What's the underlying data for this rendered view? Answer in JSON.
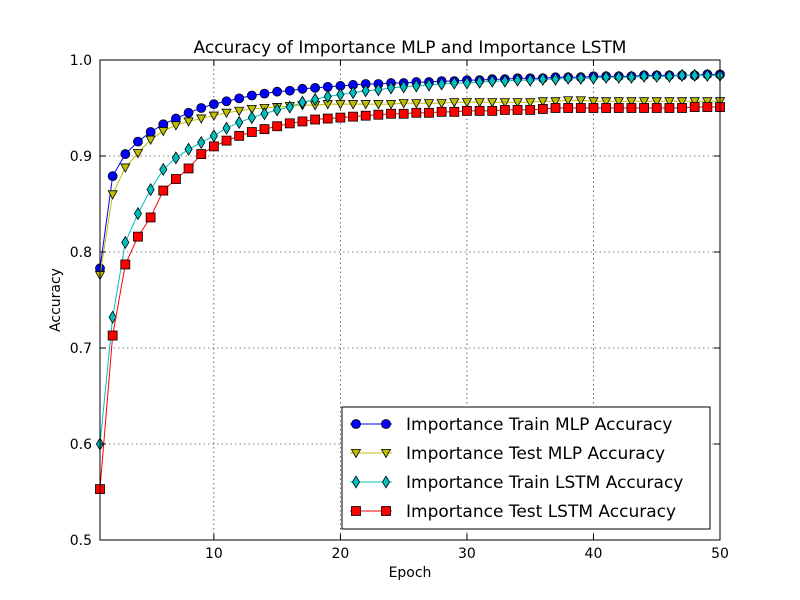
{
  "chart_data": {
    "type": "line",
    "title": "Accuracy of Importance MLP and Importance LSTM",
    "xlabel": "Epoch",
    "ylabel": "Accuracy",
    "xlim": [
      1,
      50
    ],
    "ylim": [
      0.5,
      1.0
    ],
    "xticks": [
      10,
      20,
      30,
      40,
      50
    ],
    "yticks": [
      0.5,
      0.6,
      0.7,
      0.8,
      0.9,
      1.0
    ],
    "ytick_labels": [
      "0.5",
      "0.6",
      "0.7",
      "0.8",
      "0.9",
      "1.0"
    ],
    "grid": true,
    "legend_position": "lower-right",
    "x": [
      1,
      2,
      3,
      4,
      5,
      6,
      7,
      8,
      9,
      10,
      11,
      12,
      13,
      14,
      15,
      16,
      17,
      18,
      19,
      20,
      21,
      22,
      23,
      24,
      25,
      26,
      27,
      28,
      29,
      30,
      31,
      32,
      33,
      34,
      35,
      36,
      37,
      38,
      39,
      40,
      41,
      42,
      43,
      44,
      45,
      46,
      47,
      48,
      49,
      50
    ],
    "series": [
      {
        "name": "Importance Train MLP Accuracy",
        "color": "#0000ff",
        "marker": "circle",
        "values": [
          0.783,
          0.879,
          0.902,
          0.915,
          0.925,
          0.933,
          0.939,
          0.945,
          0.95,
          0.954,
          0.957,
          0.96,
          0.963,
          0.965,
          0.967,
          0.968,
          0.97,
          0.971,
          0.972,
          0.973,
          0.974,
          0.975,
          0.975,
          0.976,
          0.976,
          0.977,
          0.977,
          0.978,
          0.978,
          0.979,
          0.979,
          0.98,
          0.98,
          0.981,
          0.981,
          0.981,
          0.982,
          0.982,
          0.982,
          0.983,
          0.983,
          0.983,
          0.983,
          0.984,
          0.984,
          0.984,
          0.984,
          0.984,
          0.985,
          0.985
        ]
      },
      {
        "name": "Importance Test MLP Accuracy",
        "color": "#bfbf00",
        "marker": "triangle-down",
        "values": [
          0.776,
          0.86,
          0.888,
          0.903,
          0.917,
          0.926,
          0.932,
          0.936,
          0.939,
          0.942,
          0.945,
          0.947,
          0.949,
          0.95,
          0.951,
          0.952,
          0.953,
          0.953,
          0.954,
          0.954,
          0.954,
          0.954,
          0.954,
          0.954,
          0.955,
          0.955,
          0.955,
          0.955,
          0.956,
          0.956,
          0.956,
          0.956,
          0.956,
          0.956,
          0.956,
          0.957,
          0.957,
          0.958,
          0.958,
          0.957,
          0.957,
          0.957,
          0.957,
          0.957,
          0.957,
          0.957,
          0.957,
          0.957,
          0.957,
          0.957
        ]
      },
      {
        "name": "Importance Train LSTM Accuracy",
        "color": "#00bfbf",
        "marker": "diamond",
        "values": [
          0.6,
          0.732,
          0.81,
          0.84,
          0.865,
          0.886,
          0.898,
          0.907,
          0.914,
          0.921,
          0.929,
          0.935,
          0.94,
          0.944,
          0.948,
          0.951,
          0.956,
          0.959,
          0.962,
          0.964,
          0.966,
          0.968,
          0.969,
          0.971,
          0.972,
          0.973,
          0.974,
          0.975,
          0.976,
          0.976,
          0.977,
          0.978,
          0.978,
          0.979,
          0.979,
          0.98,
          0.98,
          0.981,
          0.981,
          0.981,
          0.982,
          0.982,
          0.982,
          0.983,
          0.983,
          0.983,
          0.984,
          0.984,
          0.984,
          0.984
        ]
      },
      {
        "name": "Importance Test LSTM Accuracy",
        "color": "#ff0000",
        "marker": "square",
        "values": [
          0.553,
          0.713,
          0.787,
          0.816,
          0.836,
          0.864,
          0.876,
          0.887,
          0.902,
          0.91,
          0.916,
          0.921,
          0.925,
          0.928,
          0.931,
          0.934,
          0.936,
          0.938,
          0.939,
          0.94,
          0.941,
          0.942,
          0.943,
          0.944,
          0.944,
          0.945,
          0.945,
          0.946,
          0.946,
          0.947,
          0.947,
          0.947,
          0.948,
          0.948,
          0.948,
          0.949,
          0.95,
          0.95,
          0.95,
          0.95,
          0.95,
          0.95,
          0.95,
          0.95,
          0.95,
          0.95,
          0.95,
          0.951,
          0.951,
          0.951
        ]
      }
    ]
  }
}
